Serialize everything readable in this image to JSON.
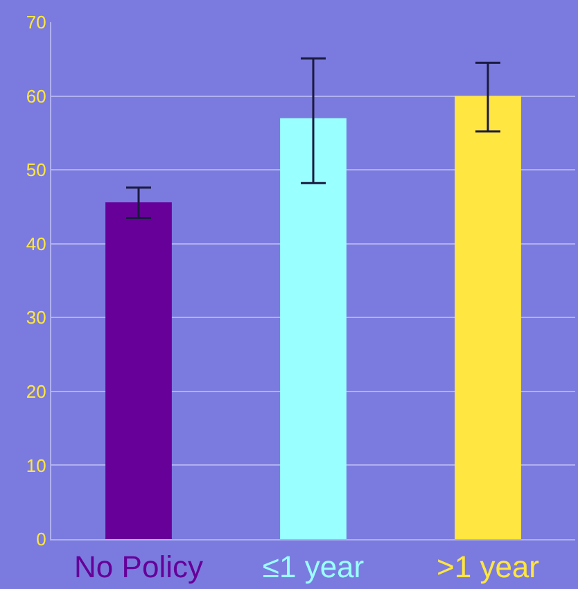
{
  "chart_data": {
    "type": "bar",
    "categories": [
      "No Policy",
      "≤1 year",
      ">1 year"
    ],
    "values": [
      45.6,
      57.0,
      60.0
    ],
    "colors": [
      "#660099",
      "#99ffff",
      "#ffe640"
    ],
    "errors": [
      [
        43.5,
        47.6
      ],
      [
        48.2,
        65.1
      ],
      [
        55.2,
        64.5
      ]
    ],
    "ylim": [
      0,
      70
    ],
    "yticks": [
      0,
      10,
      20,
      30,
      40,
      50,
      60,
      70
    ],
    "grid": "y"
  }
}
